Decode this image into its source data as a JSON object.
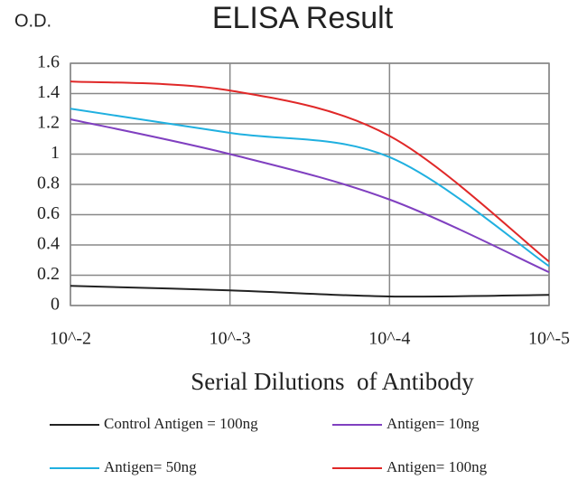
{
  "chart_data": {
    "type": "line",
    "title": "ELISA Result",
    "y_label": "O.D.",
    "x_label": "Serial Dilutions  of Antibody",
    "categories": [
      "10^-2",
      "10^-3",
      "10^-4",
      "10^-5"
    ],
    "series": [
      {
        "name": "Control Antigen = 100ng",
        "color": "#222222",
        "values": [
          0.13,
          0.1,
          0.06,
          0.07
        ]
      },
      {
        "name": "Antigen= 10ng",
        "color": "#8040c0",
        "values": [
          1.23,
          1.0,
          0.7,
          0.22
        ]
      },
      {
        "name": "Antigen= 50ng",
        "color": "#20b0e0",
        "values": [
          1.3,
          1.14,
          0.98,
          0.26
        ]
      },
      {
        "name": "Antigen= 100ng",
        "color": "#e02828",
        "values": [
          1.48,
          1.42,
          1.12,
          0.29
        ]
      }
    ],
    "ylim": [
      0,
      1.6
    ],
    "yticks": [
      0,
      0.2,
      0.4,
      0.6,
      0.8,
      1,
      1.2,
      1.4,
      1.6
    ],
    "grid": true
  }
}
